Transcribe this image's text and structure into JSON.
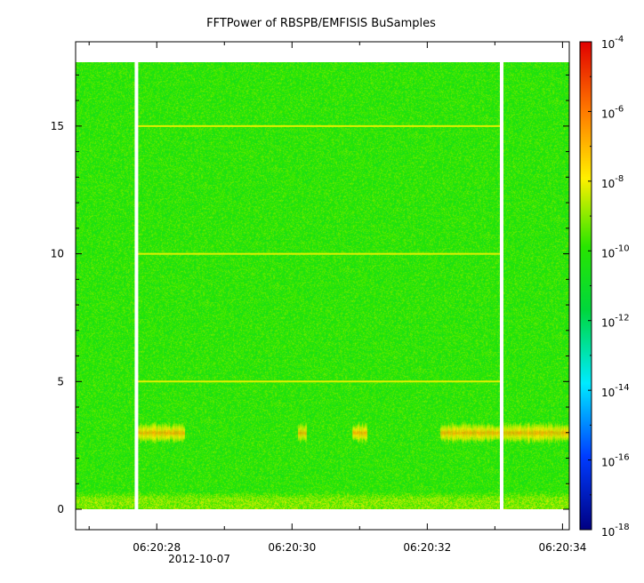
{
  "chart_data": {
    "type": "heatmap",
    "title": "FFTPower of RBSPB/EMFISIS  BuSamples",
    "xlabel": "",
    "ylabel": "",
    "x_tick_labels": [
      "06:20:28",
      "06:20:30",
      "06:20:32",
      "06:20:34"
    ],
    "x_date_label": "2012-10-07",
    "x_range": [
      "06:20:26.8",
      "06:20:34.1"
    ],
    "ylim": [
      -0.8,
      18.3
    ],
    "y_ticks": [
      0,
      5,
      10,
      15
    ],
    "data_y_range": [
      0,
      17.5
    ],
    "colorbar": {
      "scale": "log",
      "range_exp": [
        -18,
        -4
      ],
      "tick_exponents": [
        -4,
        -6,
        -8,
        -10,
        -12,
        -14,
        -16,
        -18
      ]
    },
    "background_level_exp": -10,
    "gap_times": [
      "06:20:27.7",
      "06:20:33.1"
    ],
    "horizontal_lines_y": [
      5,
      10,
      15
    ],
    "low_band_y": [
      0,
      0.5
    ],
    "bursts": [
      {
        "t_start": "06:20:27.7",
        "t_end": "06:20:28.4",
        "freq": 3
      },
      {
        "t_start": "06:20:30.1",
        "t_end": "06:20:30.2",
        "freq": 3
      },
      {
        "t_start": "06:20:30.9",
        "t_end": "06:20:31.1",
        "freq": 3
      },
      {
        "t_start": "06:20:32.2",
        "t_end": "06:20:34.1",
        "freq": 3
      }
    ]
  }
}
